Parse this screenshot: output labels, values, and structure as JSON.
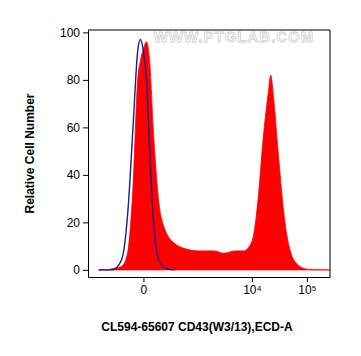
{
  "chart_data": {
    "type": "area",
    "x_label": "CL594-65607 CD43(W3/13),ECD-A",
    "y_label": "Relative Cell Number",
    "annotations": [
      "WWW.PTGLAB.COM"
    ],
    "x": [
      -600,
      -400,
      -300,
      -200,
      -150,
      -100,
      -60,
      -30,
      -15,
      0,
      15,
      30,
      60,
      100,
      150,
      200,
      300,
      500,
      1000,
      2000,
      3000,
      5000,
      7000,
      10000,
      13000,
      16000,
      20000,
      22000,
      25000,
      30000,
      40000,
      50000,
      70000,
      100000,
      150000,
      262144
    ],
    "series": [
      {
        "type": "area",
        "color": "#ff0000",
        "values": [
          0,
          0,
          0.5,
          1,
          2,
          8,
          35,
          80,
          88,
          93,
          96,
          90,
          55,
          28,
          18,
          14,
          11,
          9,
          8,
          8,
          7,
          8,
          8,
          12,
          30,
          55,
          75,
          82,
          72,
          50,
          20,
          8,
          2,
          0.3,
          0,
          0
        ]
      },
      {
        "type": "line",
        "color": "#1c1c8f",
        "values": [
          0,
          0,
          0,
          2,
          6,
          25,
          60,
          92,
          97,
          92,
          80,
          55,
          18,
          4,
          1,
          0.3,
          0,
          null,
          null,
          null,
          null,
          null,
          null,
          null,
          null,
          null,
          null,
          null,
          null,
          null,
          null,
          null,
          null,
          null,
          null,
          null
        ]
      }
    ],
    "xlim": [
      -1000,
      262144
    ],
    "xticks": [
      0,
      {
        "value": 10000,
        "label": "10⁴"
      },
      {
        "value": 100000,
        "label": "10⁵"
      }
    ],
    "ylim": [
      -3,
      101
    ],
    "yticks": [
      0,
      20,
      40,
      60,
      80,
      100
    ],
    "grid": false
  }
}
